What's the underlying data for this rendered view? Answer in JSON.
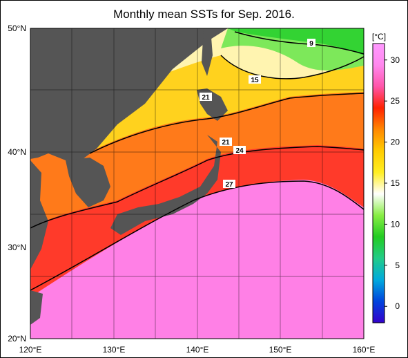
{
  "title": "Monthly mean SSTs for Sep. 2016.",
  "lat_labels": [
    "50°N",
    "40°N",
    "30°N",
    "20°N"
  ],
  "lon_labels": [
    "120°E",
    "130°E",
    "140°E",
    "150°E",
    "160°E"
  ],
  "colorbar": {
    "unit": "[°C]",
    "ticks": [
      "30",
      "25",
      "20",
      "15",
      "10",
      "5",
      "0"
    ],
    "range": [
      -2,
      32
    ],
    "stops": [
      "#3300cc",
      "#0044dd",
      "#00aadd",
      "#22cc88",
      "#22cc22",
      "#88ee44",
      "#ffffff",
      "#ffee22",
      "#ffcc00",
      "#ff8800",
      "#ff2200",
      "#ff55aa",
      "#ff88ee",
      "#ff99ff"
    ]
  },
  "isotherm_labels": [
    "9",
    "15",
    "21",
    "21",
    "24",
    "27"
  ],
  "colors": {
    "land": "#555555",
    "warm_pink": "#ff80e6",
    "red": "#ff3322",
    "orange": "#ff8c1a",
    "yellow": "#ffe028",
    "green": "#44dd44"
  }
}
